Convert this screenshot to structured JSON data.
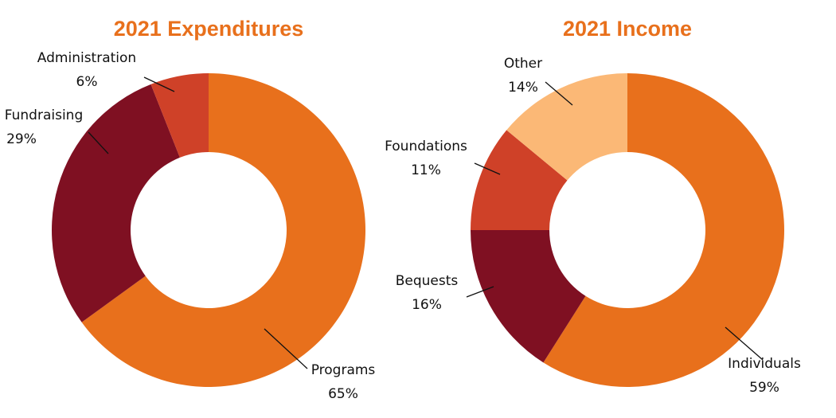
{
  "colors": {
    "title": "#e8701c",
    "orange": "#e8701c",
    "maroon": "#7f1022",
    "red": "#cf4128",
    "light": "#fbb876"
  },
  "chart_data": [
    {
      "type": "pie",
      "title": "2021 Expenditures",
      "donut": true,
      "slices": [
        {
          "label": "Programs",
          "value": 65,
          "display": "65%",
          "color": "#e8701c"
        },
        {
          "label": "Fundraising",
          "value": 29,
          "display": "29%",
          "color": "#7f1022"
        },
        {
          "label": "Administration",
          "value": 6,
          "display": "6%",
          "color": "#cf4128"
        }
      ]
    },
    {
      "type": "pie",
      "title": "2021 Income",
      "donut": true,
      "slices": [
        {
          "label": "Individuals",
          "value": 59,
          "display": "59%",
          "color": "#e8701c"
        },
        {
          "label": "Bequests",
          "value": 16,
          "display": "16%",
          "color": "#7f1022"
        },
        {
          "label": "Foundations",
          "value": 11,
          "display": "11%",
          "color": "#cf4128"
        },
        {
          "label": "Other",
          "value": 14,
          "display": "14%",
          "color": "#fbb876"
        }
      ]
    }
  ]
}
